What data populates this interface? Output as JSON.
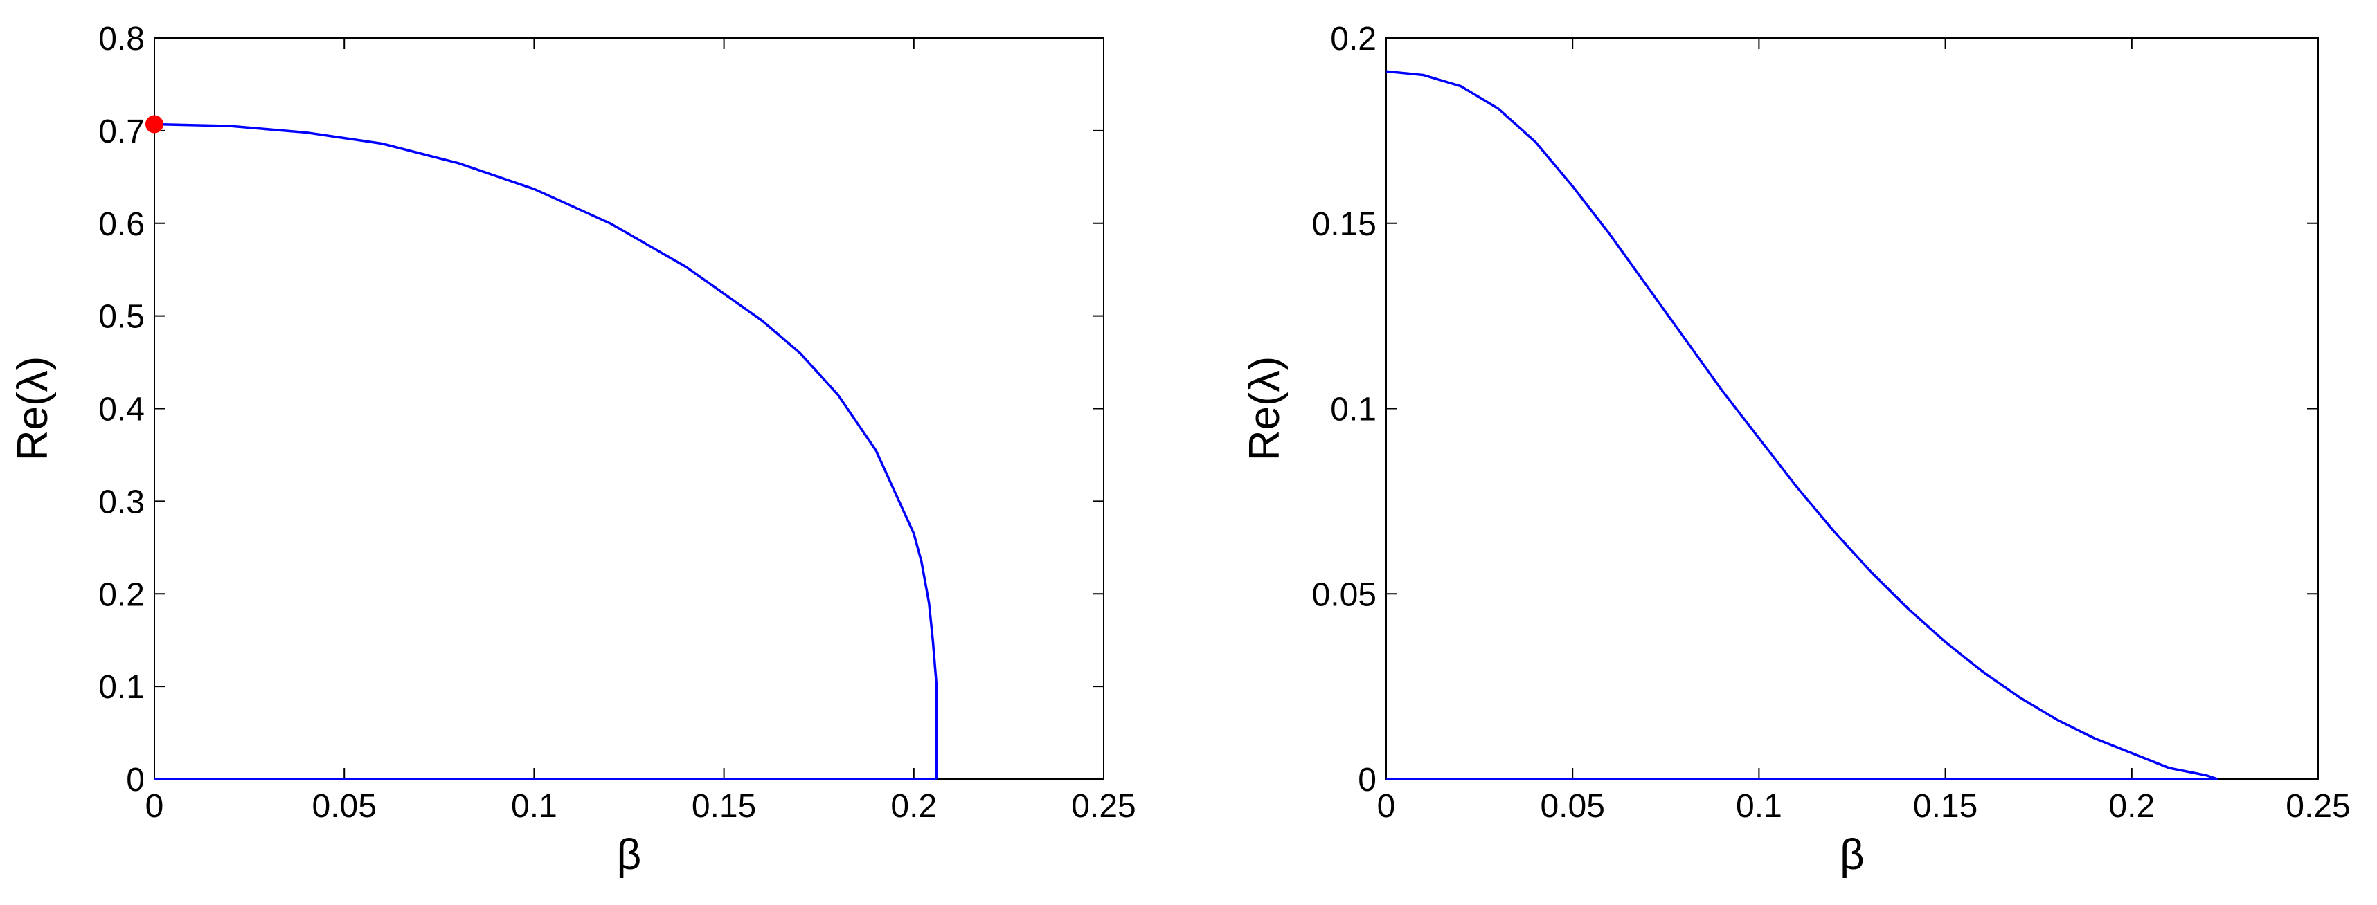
{
  "chart_data": [
    {
      "type": "line",
      "x_label": "β",
      "y_label": "Re(λ)",
      "xlim": [
        0,
        0.25
      ],
      "ylim": [
        0,
        0.8
      ],
      "xticks": [
        0,
        0.05,
        0.1,
        0.15,
        0.2,
        0.25
      ],
      "yticks": [
        0,
        0.1,
        0.2,
        0.3,
        0.4,
        0.5,
        0.6,
        0.7,
        0.8
      ],
      "series": [
        {
          "color": "#0000ff",
          "x": [
            0,
            0.02,
            0.04,
            0.06,
            0.08,
            0.1,
            0.12,
            0.14,
            0.16,
            0.17,
            0.18,
            0.19,
            0.2,
            0.202,
            0.204,
            0.205,
            0.206,
            0.206
          ],
          "values": [
            0.707,
            0.705,
            0.698,
            0.686,
            0.665,
            0.637,
            0.6,
            0.553,
            0.495,
            0.46,
            0.415,
            0.355,
            0.265,
            0.235,
            0.19,
            0.15,
            0.1,
            0
          ]
        },
        {
          "color": "#0000ff",
          "x": [
            0,
            0.206
          ],
          "values": [
            0,
            0
          ]
        },
        {
          "color": "#ff0000",
          "marker": "o",
          "x": [
            0
          ],
          "values": [
            0.707
          ]
        }
      ]
    },
    {
      "type": "line",
      "x_label": "β",
      "y_label": "Re(λ)",
      "xlim": [
        0,
        0.25
      ],
      "ylim": [
        0,
        0.2
      ],
      "xticks": [
        0,
        0.05,
        0.1,
        0.15,
        0.2,
        0.25
      ],
      "yticks": [
        0,
        0.05,
        0.1,
        0.15,
        0.2
      ],
      "series": [
        {
          "color": "#0000ff",
          "x": [
            0,
            0.01,
            0.02,
            0.03,
            0.04,
            0.05,
            0.06,
            0.07,
            0.08,
            0.09,
            0.1,
            0.11,
            0.12,
            0.13,
            0.14,
            0.15,
            0.16,
            0.17,
            0.18,
            0.19,
            0.2,
            0.21,
            0.22,
            0.223
          ],
          "values": [
            0.191,
            0.19,
            0.187,
            0.181,
            0.172,
            0.16,
            0.147,
            0.133,
            0.119,
            0.105,
            0.092,
            0.079,
            0.067,
            0.056,
            0.046,
            0.037,
            0.029,
            0.022,
            0.016,
            0.011,
            0.007,
            0.003,
            0.001,
            0
          ]
        },
        {
          "color": "#0000ff",
          "x": [
            0,
            0.223
          ],
          "values": [
            0,
            0
          ]
        }
      ]
    }
  ]
}
